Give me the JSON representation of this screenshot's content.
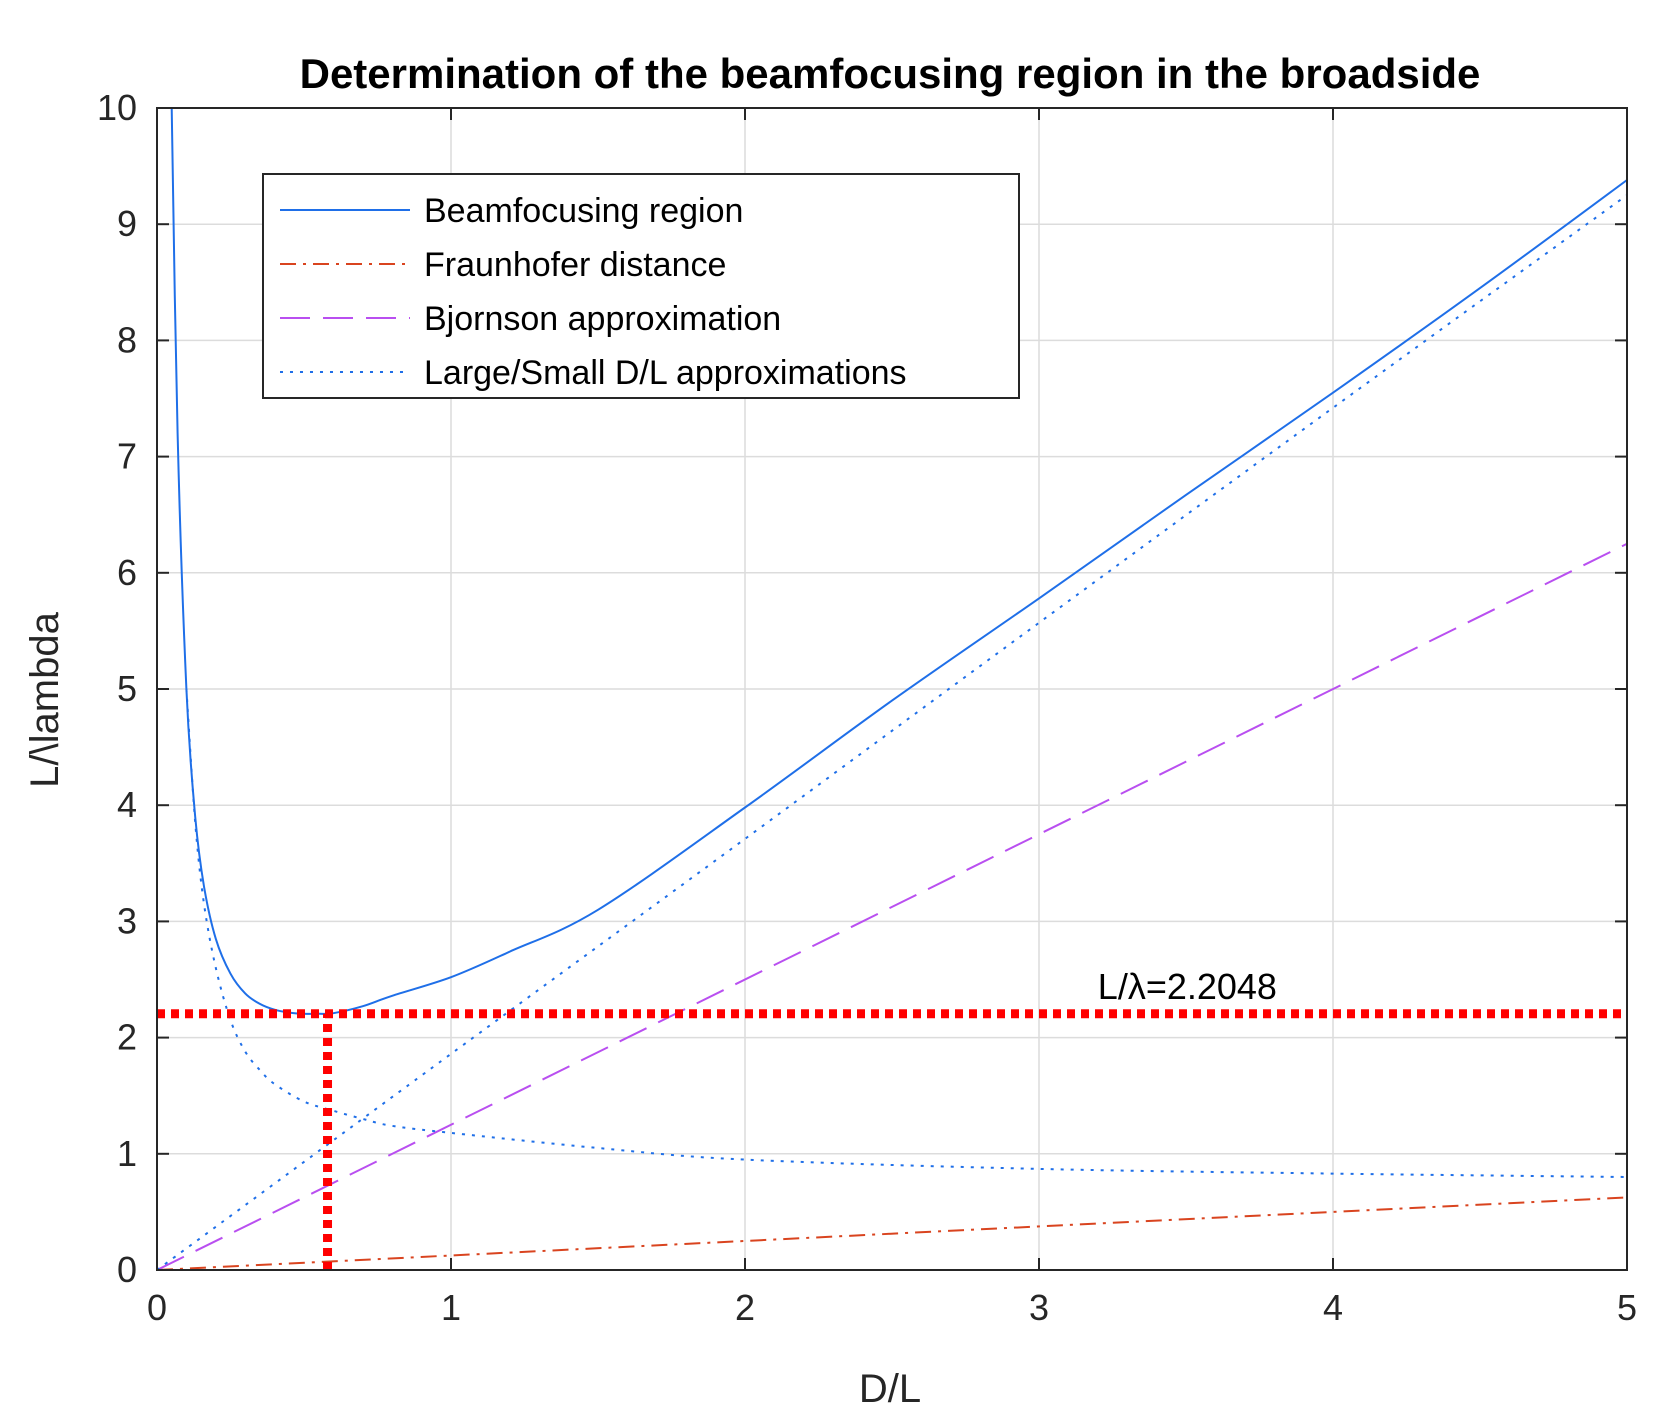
{
  "chart_data": {
    "type": "line",
    "title": "Determination of the beamfocusing region in the broadside",
    "xlabel": "D/L",
    "ylabel": "L/\\lambda",
    "xlim": [
      0,
      5
    ],
    "ylim": [
      0,
      10
    ],
    "xticks": [
      "0",
      "1",
      "2",
      "3",
      "4",
      "5"
    ],
    "yticks": [
      "0",
      "1",
      "2",
      "3",
      "4",
      "5",
      "6",
      "7",
      "8",
      "9",
      "10"
    ],
    "grid": true,
    "legend_position": "upper-left",
    "series": [
      {
        "name": "Beamfocusing region",
        "color": "#1f6fe8",
        "style": "solid",
        "x": [
          0.05,
          0.07,
          0.1,
          0.13,
          0.16,
          0.2,
          0.25,
          0.3,
          0.35,
          0.4,
          0.45,
          0.5,
          0.55,
          0.6,
          0.7,
          0.8,
          1.0,
          1.2,
          1.5,
          2.0,
          2.5,
          3.0,
          3.5,
          4.0,
          4.5,
          5.0
        ],
        "y": [
          10.0,
          7.2,
          5.0,
          3.9,
          3.3,
          2.85,
          2.55,
          2.38,
          2.29,
          2.24,
          2.215,
          2.205,
          2.205,
          2.21,
          2.27,
          2.36,
          2.52,
          2.74,
          3.1,
          3.98,
          4.9,
          5.78,
          6.67,
          7.55,
          8.45,
          9.38
        ]
      },
      {
        "name": "Fraunhofer distance",
        "color": "#d9441f",
        "style": "dashdot",
        "x": [
          0,
          5
        ],
        "y": [
          0,
          0.625
        ]
      },
      {
        "name": "Bjornson approximation",
        "color": "#b94ff0",
        "style": "dashed",
        "x": [
          0,
          5
        ],
        "y": [
          0,
          6.25
        ]
      },
      {
        "name": "Large/Small D/L approximations",
        "color": "#1f6fe8",
        "style": "dotted",
        "segments": [
          {
            "x": [
              0,
              0.5,
              1.0,
              2.0,
              3.0,
              4.0,
              5.0
            ],
            "y": [
              0,
              0.93,
              1.86,
              3.71,
              5.57,
              7.42,
              9.25
            ]
          },
          {
            "x": [
              0.1,
              0.13,
              0.16,
              0.2,
              0.25,
              0.3,
              0.35,
              0.4,
              0.5,
              0.6,
              0.7,
              0.8,
              1.0,
              1.5,
              2.0,
              3.0,
              4.0,
              5.0
            ],
            "y": [
              5.0,
              3.85,
              3.15,
              2.6,
              2.15,
              1.88,
              1.72,
              1.6,
              1.45,
              1.37,
              1.3,
              1.24,
              1.18,
              1.05,
              0.95,
              0.87,
              0.83,
              0.8
            ]
          }
        ]
      }
    ],
    "reference_lines": [
      {
        "orientation": "horizontal",
        "value": 2.2048,
        "color": "#ff0000",
        "style": "dotted-thick"
      },
      {
        "orientation": "vertical",
        "value": 0.58,
        "from": 0,
        "to": 2.2048,
        "color": "#ff0000",
        "style": "dotted-thick"
      }
    ],
    "annotation": {
      "text": "L/λ=2.2048",
      "x": 3.2,
      "y": 2.4
    },
    "legend": [
      "Beamfocusing region",
      "Fraunhofer distance",
      "Bjornson approximation",
      "Large/Small D/L approximations"
    ]
  }
}
